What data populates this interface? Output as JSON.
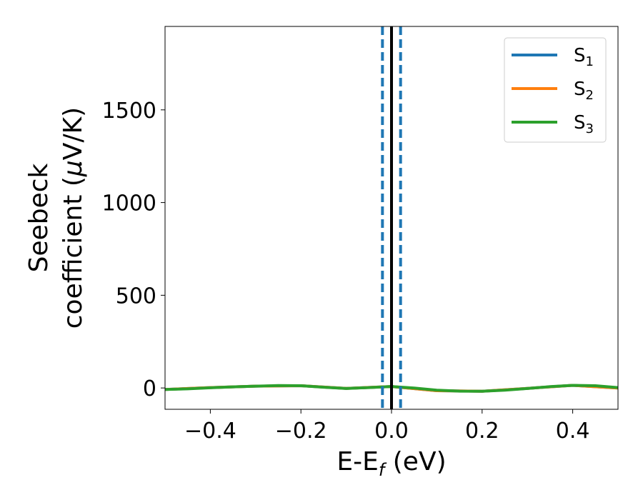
{
  "chart_data": {
    "type": "line",
    "xlabel": {
      "main": "E-E",
      "sub": "f",
      "unit": " (eV)"
    },
    "ylabel": {
      "line1": "Seebeck",
      "line2_pre": "coefficient  (",
      "mu": "μ",
      "line2_post": "V/K)"
    },
    "xlim": [
      -0.5,
      0.5
    ],
    "ylim": [
      -115,
      1950
    ],
    "xticks": [
      -0.4,
      -0.2,
      0.0,
      0.2,
      0.4
    ],
    "xtick_labels": [
      "−0.4",
      "−0.2",
      "0.0",
      "0.2",
      "0.4"
    ],
    "yticks": [
      0,
      500,
      1000,
      1500
    ],
    "ytick_labels": [
      "0",
      "500",
      "1000",
      "1500"
    ],
    "grid": false,
    "legend_position": "top-right",
    "series": [
      {
        "name": "S",
        "sub": "1",
        "color": "#1f77b4",
        "x": [
          -0.5,
          -0.4,
          -0.3,
          -0.2,
          -0.1,
          0.0,
          0.1,
          0.2,
          0.3,
          0.4,
          0.5
        ],
        "y": [
          -8,
          2,
          10,
          12,
          -2,
          8,
          -15,
          -18,
          -2,
          14,
          0
        ]
      },
      {
        "name": "S",
        "sub": "2",
        "color": "#ff7f0e",
        "x": [
          -0.5,
          -0.4,
          -0.3,
          -0.2,
          -0.1,
          0.0,
          0.1,
          0.2,
          0.3,
          0.4,
          0.5
        ],
        "y": [
          -8,
          2,
          10,
          12,
          -2,
          8,
          -15,
          -18,
          -2,
          14,
          0
        ]
      },
      {
        "name": "S",
        "sub": "3",
        "color": "#2ca02c",
        "x": [
          -0.5,
          -0.45,
          -0.4,
          -0.35,
          -0.3,
          -0.25,
          -0.2,
          -0.15,
          -0.1,
          -0.05,
          0.0,
          0.05,
          0.1,
          0.15,
          0.2,
          0.25,
          0.3,
          0.35,
          0.4,
          0.45,
          0.5
        ],
        "y": [
          -8,
          -5,
          1,
          6,
          10,
          13,
          12,
          4,
          -3,
          2,
          8,
          0,
          -12,
          -17,
          -18,
          -12,
          -3,
          7,
          14,
          12,
          2
        ]
      }
    ],
    "vlines": [
      {
        "x": 0.0,
        "color": "#000000",
        "style": "solid"
      },
      {
        "x": -0.02,
        "color": "#1f77b4",
        "style": "dashed"
      },
      {
        "x": 0.02,
        "color": "#1f77b4",
        "style": "dashed"
      }
    ]
  }
}
